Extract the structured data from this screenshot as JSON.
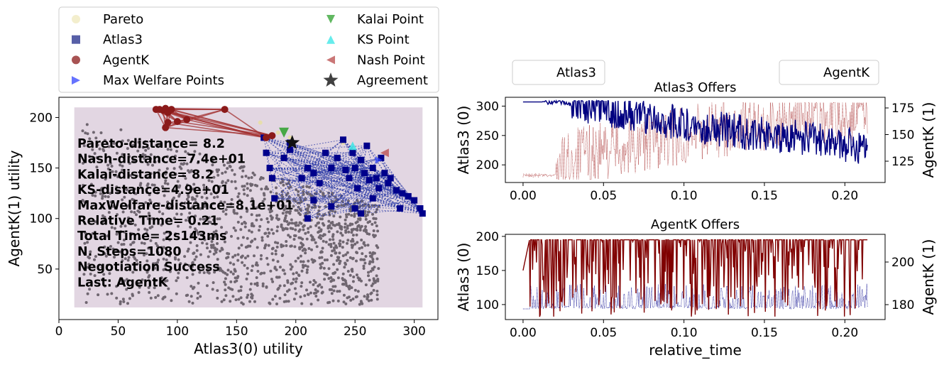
{
  "chart_data": [
    {
      "type": "scatter",
      "xlabel": "Atlas3(0) utility",
      "ylabel": "AgentK(1) utility",
      "xlim": [
        0,
        320
      ],
      "ylim": [
        0,
        220
      ],
      "xticks": [
        0,
        50,
        100,
        150,
        200,
        250,
        300
      ],
      "yticks": [
        50,
        100,
        150,
        200
      ],
      "legend": {
        "placement": "top",
        "entries": [
          {
            "label": "Pareto",
            "marker": "circle",
            "color": "#f2ecc8"
          },
          {
            "label": "Atlas3",
            "marker": "square",
            "color": "#1f2a8a"
          },
          {
            "label": "AgentK",
            "marker": "circle",
            "color": "#8b1a1a"
          },
          {
            "label": "Max Welfare Points",
            "marker": "triangle-right",
            "color": "#3344ff"
          },
          {
            "label": "Kalai Point",
            "marker": "triangle-down",
            "color": "#2ca02c"
          },
          {
            "label": "KS Point",
            "marker": "triangle-up",
            "color": "#33e6e6"
          },
          {
            "label": "Nash Point",
            "marker": "triangle-left",
            "color": "#b84a4a"
          },
          {
            "label": "Agreement",
            "marker": "star",
            "color": "#000000"
          }
        ]
      },
      "annotations": [
        "Pareto-distance=  8.2",
        "Nash-distance=7.4e+01",
        "Kalai-distance=  8.2",
        "KS-distance=4.9e+01",
        "MaxWelfare-distance=8.1e+01",
        "Relative Time= 0.21",
        "Total Time= 2s143ms",
        "N. Steps=1080",
        "Negotiation Success",
        "Last: AgentK"
      ],
      "outcome_region": {
        "x": [
          13,
          307
        ],
        "y": [
          12,
          210
        ],
        "color": "#e2d6e2"
      },
      "atlas3_offers": [
        [
          173,
          180
        ],
        [
          175,
          165
        ],
        [
          178,
          150
        ],
        [
          180,
          140
        ],
        [
          182,
          120
        ],
        [
          190,
          160
        ],
        [
          195,
          168
        ],
        [
          210,
          150
        ],
        [
          215,
          145
        ],
        [
          220,
          135
        ],
        [
          225,
          165
        ],
        [
          230,
          150
        ],
        [
          235,
          160
        ],
        [
          240,
          178
        ],
        [
          242,
          148
        ],
        [
          245,
          140
        ],
        [
          248,
          165
        ],
        [
          250,
          150
        ],
        [
          252,
          130
        ],
        [
          255,
          158
        ],
        [
          258,
          145
        ],
        [
          260,
          172
        ],
        [
          262,
          138
        ],
        [
          265,
          150
        ],
        [
          268,
          140
        ],
        [
          270,
          130
        ],
        [
          272,
          160
        ],
        [
          275,
          145
        ],
        [
          278,
          135
        ],
        [
          280,
          140
        ],
        [
          285,
          128
        ],
        [
          290,
          125
        ],
        [
          295,
          122
        ],
        [
          300,
          118
        ],
        [
          305,
          110
        ],
        [
          307,
          105
        ],
        [
          250,
          110
        ],
        [
          255,
          105
        ],
        [
          230,
          112
        ],
        [
          210,
          100
        ],
        [
          215,
          118
        ],
        [
          205,
          140
        ],
        [
          195,
          175
        ],
        [
          265,
          120
        ],
        [
          288,
          110
        ]
      ],
      "agentk_offers": [
        [
          82,
          208
        ],
        [
          85,
          208
        ],
        [
          88,
          207
        ],
        [
          90,
          209
        ],
        [
          92,
          205
        ],
        [
          95,
          208
        ],
        [
          140,
          208
        ],
        [
          100,
          196
        ],
        [
          92,
          195
        ],
        [
          90,
          190
        ],
        [
          108,
          198
        ],
        [
          175,
          180
        ],
        [
          180,
          182
        ]
      ],
      "pareto": [
        [
          170,
          195
        ],
        [
          185,
          185
        ],
        [
          195,
          180
        ],
        [
          240,
          175
        ],
        [
          270,
          160
        ]
      ],
      "max_welfare_point": [
        270,
        158
      ],
      "kalai_point": [
        190,
        185
      ],
      "ks_point": [
        248,
        172
      ],
      "nash_point": [
        275,
        165
      ],
      "agreement": [
        197,
        175
      ]
    },
    {
      "type": "line",
      "title": "Atlas3 Offers",
      "xlabel": "",
      "ylabel": "Atlas3 (0)",
      "ylabel_right": "AgentK (1)",
      "xlim": [
        -0.011,
        0.225
      ],
      "ylim": [
        170,
        315
      ],
      "ylim_right": [
        105,
        185
      ],
      "xticks": [
        "0.00",
        "0.05",
        "0.10",
        "0.15",
        "0.20"
      ],
      "yticks": [
        200,
        250,
        300
      ],
      "yticks_right": [
        125,
        150,
        175
      ],
      "legend": [
        {
          "label": "Atlas3",
          "placement": "upper-left"
        },
        {
          "label": "AgentK",
          "placement": "upper-right"
        }
      ],
      "series": [
        {
          "name": "Atlas3",
          "color": "#000080",
          "x": [
            0.0,
            0.02,
            0.03,
            0.04,
            0.05,
            0.06,
            0.07,
            0.08,
            0.09,
            0.1,
            0.11,
            0.12,
            0.13,
            0.14,
            0.15,
            0.16,
            0.17,
            0.18,
            0.19,
            0.2,
            0.214
          ],
          "values": [
            307,
            307,
            304,
            300,
            295,
            290,
            285,
            280,
            275,
            270,
            265,
            262,
            258,
            255,
            252,
            250,
            248,
            245,
            240,
            235,
            230
          ]
        },
        {
          "name": "AgentK",
          "color": "#a52a2a",
          "x": [
            0.0,
            0.02,
            0.03,
            0.05,
            0.07,
            0.09,
            0.1,
            0.12,
            0.14,
            0.16,
            0.18,
            0.2,
            0.214
          ],
          "values": [
            110,
            115,
            128,
            135,
            140,
            145,
            150,
            155,
            160,
            165,
            168,
            170,
            172
          ]
        }
      ]
    },
    {
      "type": "line",
      "title": "AgentK Offers",
      "xlabel": "relative_time",
      "ylabel": "Atlas3 (0)",
      "ylabel_right": "AgentK (1)",
      "xlim": [
        -0.011,
        0.225
      ],
      "ylim": [
        78,
        203
      ],
      "ylim_right": [
        173,
        213
      ],
      "xticks": [
        "0.00",
        "0.05",
        "0.10",
        "0.15",
        "0.20"
      ],
      "yticks": [
        100,
        150,
        200
      ],
      "yticks_right": [
        180,
        200
      ],
      "series": [
        {
          "name": "AgentK",
          "color": "#800000",
          "x": [
            0.0,
            0.005,
            0.214
          ],
          "values": [
            150,
            195,
            195
          ],
          "low": 82
        },
        {
          "name": "Atlas3",
          "color": "#00008b",
          "x": [
            0.0,
            0.005,
            0.214
          ],
          "values": [
            178,
            178,
            178
          ],
          "high": 190
        }
      ]
    }
  ]
}
